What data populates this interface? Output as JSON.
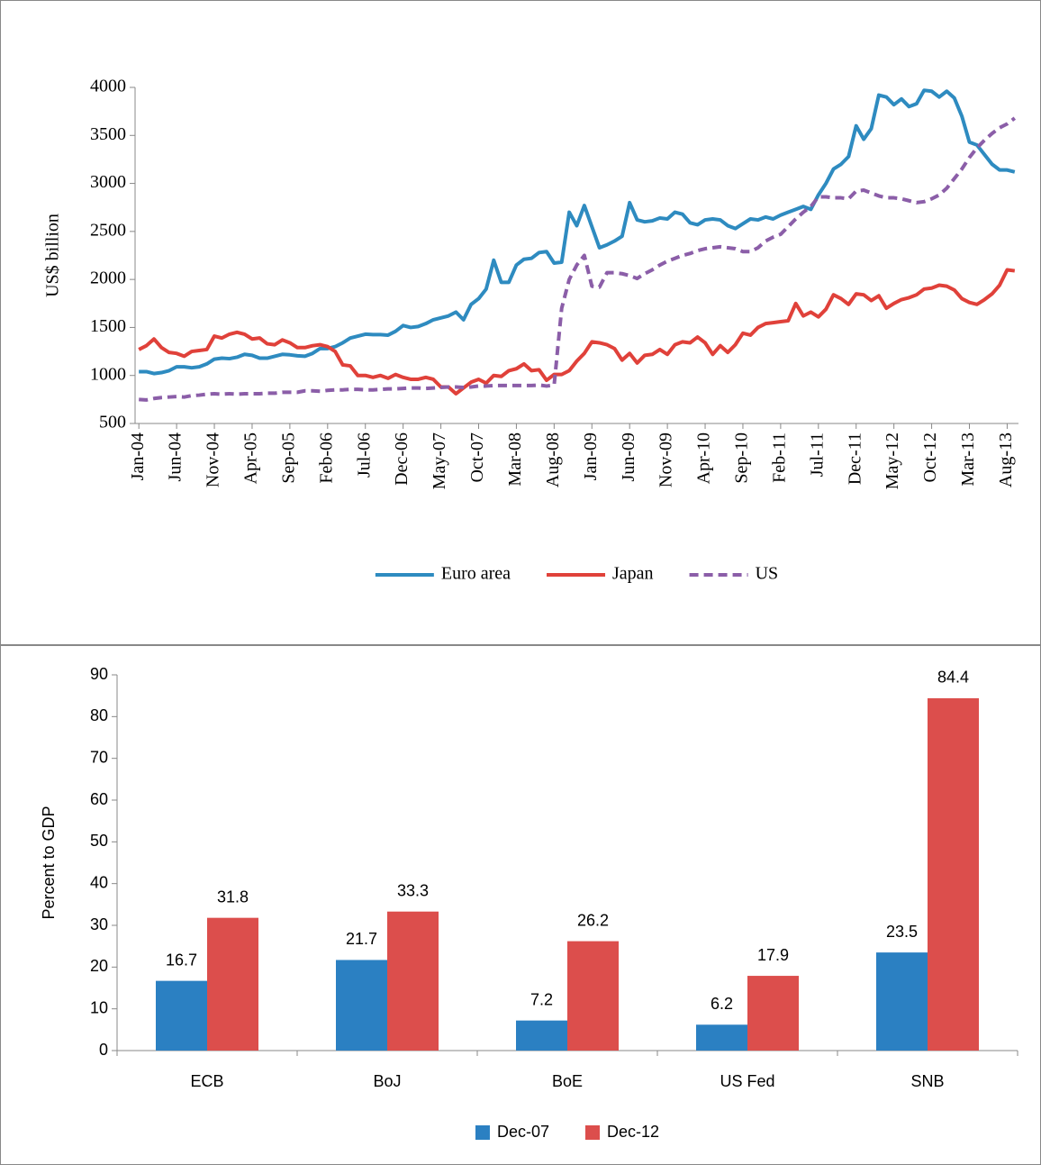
{
  "chart_data": [
    {
      "type": "line",
      "y_label": "US$ billion",
      "categories": [
        "Jan-04",
        null,
        null,
        null,
        null,
        "Jun-04",
        null,
        null,
        null,
        null,
        "Nov-04",
        null,
        null,
        null,
        null,
        "Apr-05",
        null,
        null,
        null,
        null,
        "Sep-05",
        null,
        null,
        null,
        null,
        "Feb-06",
        null,
        null,
        null,
        null,
        "Jul-06",
        null,
        null,
        null,
        null,
        "Dec-06",
        null,
        null,
        null,
        null,
        "May-07",
        null,
        null,
        null,
        null,
        "Oct-07",
        null,
        null,
        null,
        null,
        "Mar-08",
        null,
        null,
        null,
        null,
        "Aug-08",
        null,
        null,
        null,
        null,
        "Jan-09",
        null,
        null,
        null,
        null,
        "Jun-09",
        null,
        null,
        null,
        null,
        "Nov-09",
        null,
        null,
        null,
        null,
        "Apr-10",
        null,
        null,
        null,
        null,
        "Sep-10",
        null,
        null,
        null,
        null,
        "Feb-11",
        null,
        null,
        null,
        null,
        "Jul-11",
        null,
        null,
        null,
        null,
        "Dec-11",
        null,
        null,
        null,
        null,
        "May-12",
        null,
        null,
        null,
        null,
        "Oct-12",
        null,
        null,
        null,
        null,
        "Mar-13",
        null,
        null,
        null,
        null,
        "Aug-13",
        null
      ],
      "series": [
        {
          "name": "Euro area",
          "color": "#2e8bc0",
          "dash": false,
          "values": [
            1040,
            1040,
            1020,
            1030,
            1050,
            1090,
            1090,
            1080,
            1090,
            1120,
            1170,
            1180,
            1175,
            1190,
            1220,
            1210,
            1180,
            1180,
            1200,
            1220,
            1215,
            1205,
            1200,
            1230,
            1280,
            1280,
            1300,
            1340,
            1390,
            1410,
            1430,
            1425,
            1425,
            1420,
            1460,
            1520,
            1500,
            1510,
            1540,
            1580,
            1600,
            1620,
            1660,
            1580,
            1740,
            1800,
            1900,
            2200,
            1970,
            1970,
            2150,
            2210,
            2220,
            2280,
            2290,
            2170,
            2180,
            2700,
            2560,
            2770,
            2550,
            2330,
            2360,
            2400,
            2450,
            2800,
            2620,
            2600,
            2610,
            2640,
            2630,
            2700,
            2680,
            2590,
            2570,
            2620,
            2630,
            2620,
            2560,
            2530,
            2580,
            2630,
            2620,
            2650,
            2630,
            2670,
            2700,
            2730,
            2760,
            2730,
            2880,
            3000,
            3150,
            3200,
            3280,
            3600,
            3460,
            3570,
            3920,
            3900,
            3820,
            3880,
            3800,
            3830,
            3970,
            3960,
            3900,
            3960,
            3890,
            3700,
            3430,
            3400,
            3300,
            3200,
            3140,
            3140,
            3120
          ]
        },
        {
          "name": "Japan",
          "color": "#e0413a",
          "dash": false,
          "values": [
            1270,
            1310,
            1380,
            1290,
            1240,
            1230,
            1200,
            1250,
            1260,
            1270,
            1410,
            1390,
            1430,
            1450,
            1430,
            1380,
            1390,
            1330,
            1320,
            1370,
            1340,
            1290,
            1290,
            1310,
            1320,
            1300,
            1250,
            1110,
            1100,
            1000,
            1000,
            980,
            1000,
            970,
            1010,
            980,
            960,
            960,
            980,
            960,
            880,
            880,
            810,
            870,
            930,
            960,
            920,
            1000,
            990,
            1050,
            1070,
            1120,
            1050,
            1060,
            950,
            1010,
            1010,
            1050,
            1150,
            1230,
            1350,
            1340,
            1320,
            1280,
            1160,
            1230,
            1130,
            1210,
            1220,
            1270,
            1220,
            1320,
            1350,
            1340,
            1400,
            1340,
            1220,
            1310,
            1240,
            1320,
            1440,
            1420,
            1500,
            1540,
            1550,
            1560,
            1570,
            1750,
            1620,
            1660,
            1610,
            1690,
            1840,
            1800,
            1740,
            1850,
            1840,
            1780,
            1830,
            1700,
            1750,
            1790,
            1810,
            1840,
            1900,
            1910,
            1940,
            1930,
            1890,
            1800,
            1760,
            1740,
            1790,
            1850,
            1940,
            2100,
            2090
          ]
        },
        {
          "name": "US",
          "color": "#8b5ea8",
          "dash": true,
          "values": [
            750,
            745,
            760,
            770,
            775,
            780,
            775,
            790,
            795,
            805,
            810,
            805,
            810,
            805,
            810,
            810,
            810,
            815,
            815,
            825,
            825,
            825,
            840,
            840,
            835,
            845,
            850,
            850,
            855,
            855,
            850,
            850,
            855,
            860,
            860,
            865,
            870,
            870,
            865,
            870,
            875,
            880,
            880,
            875,
            880,
            890,
            890,
            895,
            895,
            895,
            895,
            895,
            895,
            900,
            890,
            900,
            1700,
            2000,
            2150,
            2250,
            1930,
            1920,
            2070,
            2070,
            2060,
            2040,
            2010,
            2060,
            2100,
            2150,
            2190,
            2220,
            2250,
            2270,
            2300,
            2320,
            2330,
            2340,
            2330,
            2320,
            2290,
            2290,
            2330,
            2400,
            2440,
            2470,
            2550,
            2630,
            2700,
            2760,
            2860,
            2860,
            2850,
            2850,
            2840,
            2920,
            2930,
            2900,
            2870,
            2850,
            2850,
            2840,
            2820,
            2800,
            2810,
            2840,
            2880,
            2950,
            3050,
            3150,
            3270,
            3370,
            3450,
            3520,
            3580,
            3620,
            3680
          ]
        }
      ],
      "ylim": [
        500,
        4000
      ],
      "yticks": [
        500,
        1000,
        1500,
        2000,
        2500,
        3000,
        3500,
        4000
      ],
      "grid": false,
      "legend": "bottom"
    },
    {
      "type": "bar",
      "y_label": "Percent to GDP",
      "categories": [
        "ECB",
        "BoJ",
        "BoE",
        "US Fed",
        "SNB"
      ],
      "series": [
        {
          "name": "Dec-07",
          "color": "#2b80c2",
          "values": [
            16.7,
            21.7,
            7.2,
            6.2,
            23.5
          ]
        },
        {
          "name": "Dec-12",
          "color": "#dc4e4c",
          "values": [
            31.8,
            33.3,
            26.2,
            17.9,
            84.4
          ]
        }
      ],
      "ylim": [
        0,
        90
      ],
      "yticks": [
        0,
        10,
        20,
        30,
        40,
        50,
        60,
        70,
        80,
        90
      ],
      "grid": false,
      "legend": "bottom",
      "data_labels": true
    }
  ]
}
